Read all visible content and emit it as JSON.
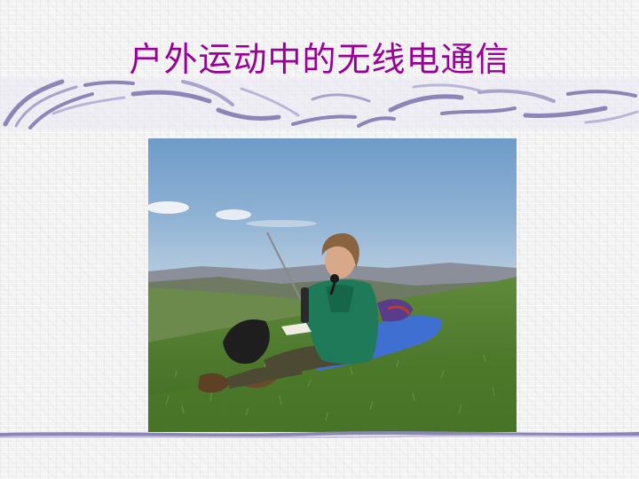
{
  "slide": {
    "title": "户外运动中的无线电通信"
  },
  "colors": {
    "title": "#990099",
    "decoration": "#8c86b8",
    "decoration_light": "#c8c4e0"
  },
  "photo": {
    "icon": "outdoor-radio-operator-photo"
  }
}
